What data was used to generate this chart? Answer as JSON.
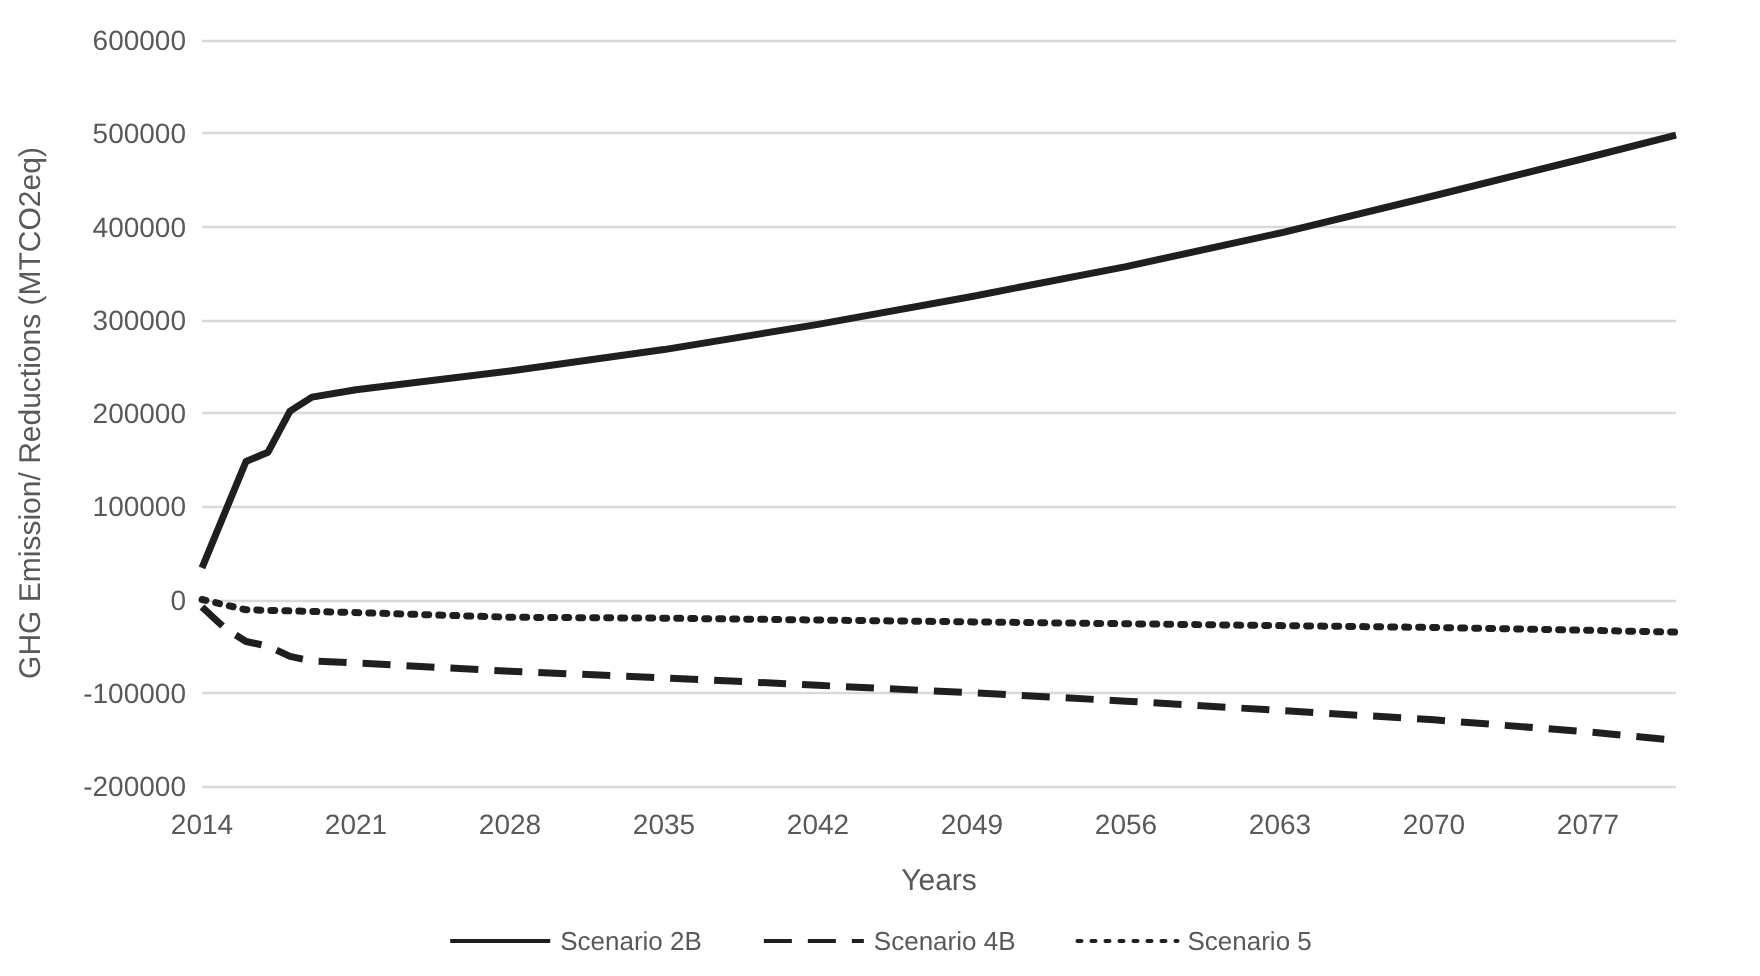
{
  "chart_data": {
    "type": "line",
    "xlabel": "Years",
    "ylabel": "GHG Emission/ Reductions (MTCO2eq)",
    "xlim": [
      2014,
      2081
    ],
    "xticks": [
      2014,
      2021,
      2028,
      2035,
      2042,
      2049,
      2056,
      2063,
      2070,
      2077
    ],
    "ylim": [
      -200000,
      600000
    ],
    "yticks": [
      -200000,
      -100000,
      0,
      100000,
      200000,
      300000,
      400000,
      500000,
      600000
    ],
    "grid": "y",
    "legend": "bottom",
    "marker": "none",
    "series": [
      {
        "name": "Scenario 2B",
        "color": "#1f1f1f",
        "line_style": "solid",
        "x": [
          2014,
          2016,
          2017,
          2018,
          2019,
          2021,
          2028,
          2035,
          2042,
          2049,
          2056,
          2063,
          2070,
          2077,
          2081
        ],
        "values": [
          34000,
          148000,
          158000,
          202000,
          217000,
          225000,
          245000,
          268000,
          295000,
          325000,
          357000,
          393000,
          433000,
          474000,
          498000
        ]
      },
      {
        "name": "Scenario 4B",
        "color": "#1f1f1f",
        "line_style": "dashed",
        "x": [
          2014,
          2015,
          2016,
          2017,
          2018,
          2019,
          2021,
          2028,
          2035,
          2042,
          2049,
          2056,
          2063,
          2070,
          2077,
          2081
        ],
        "values": [
          -8000,
          -30000,
          -45000,
          -50000,
          -61000,
          -66000,
          -68000,
          -77000,
          -84000,
          -92000,
          -100000,
          -109000,
          -119000,
          -129000,
          -142000,
          -151000
        ]
      },
      {
        "name": "Scenario 5",
        "color": "#1f1f1f",
        "line_style": "dotted",
        "x": [
          2014,
          2016,
          2021,
          2028,
          2035,
          2042,
          2049,
          2056,
          2063,
          2070,
          2077,
          2081
        ],
        "values": [
          0,
          -11000,
          -14000,
          -19000,
          -20000,
          -22000,
          -24000,
          -26000,
          -28000,
          -30000,
          -33000,
          -35000
        ]
      }
    ]
  }
}
